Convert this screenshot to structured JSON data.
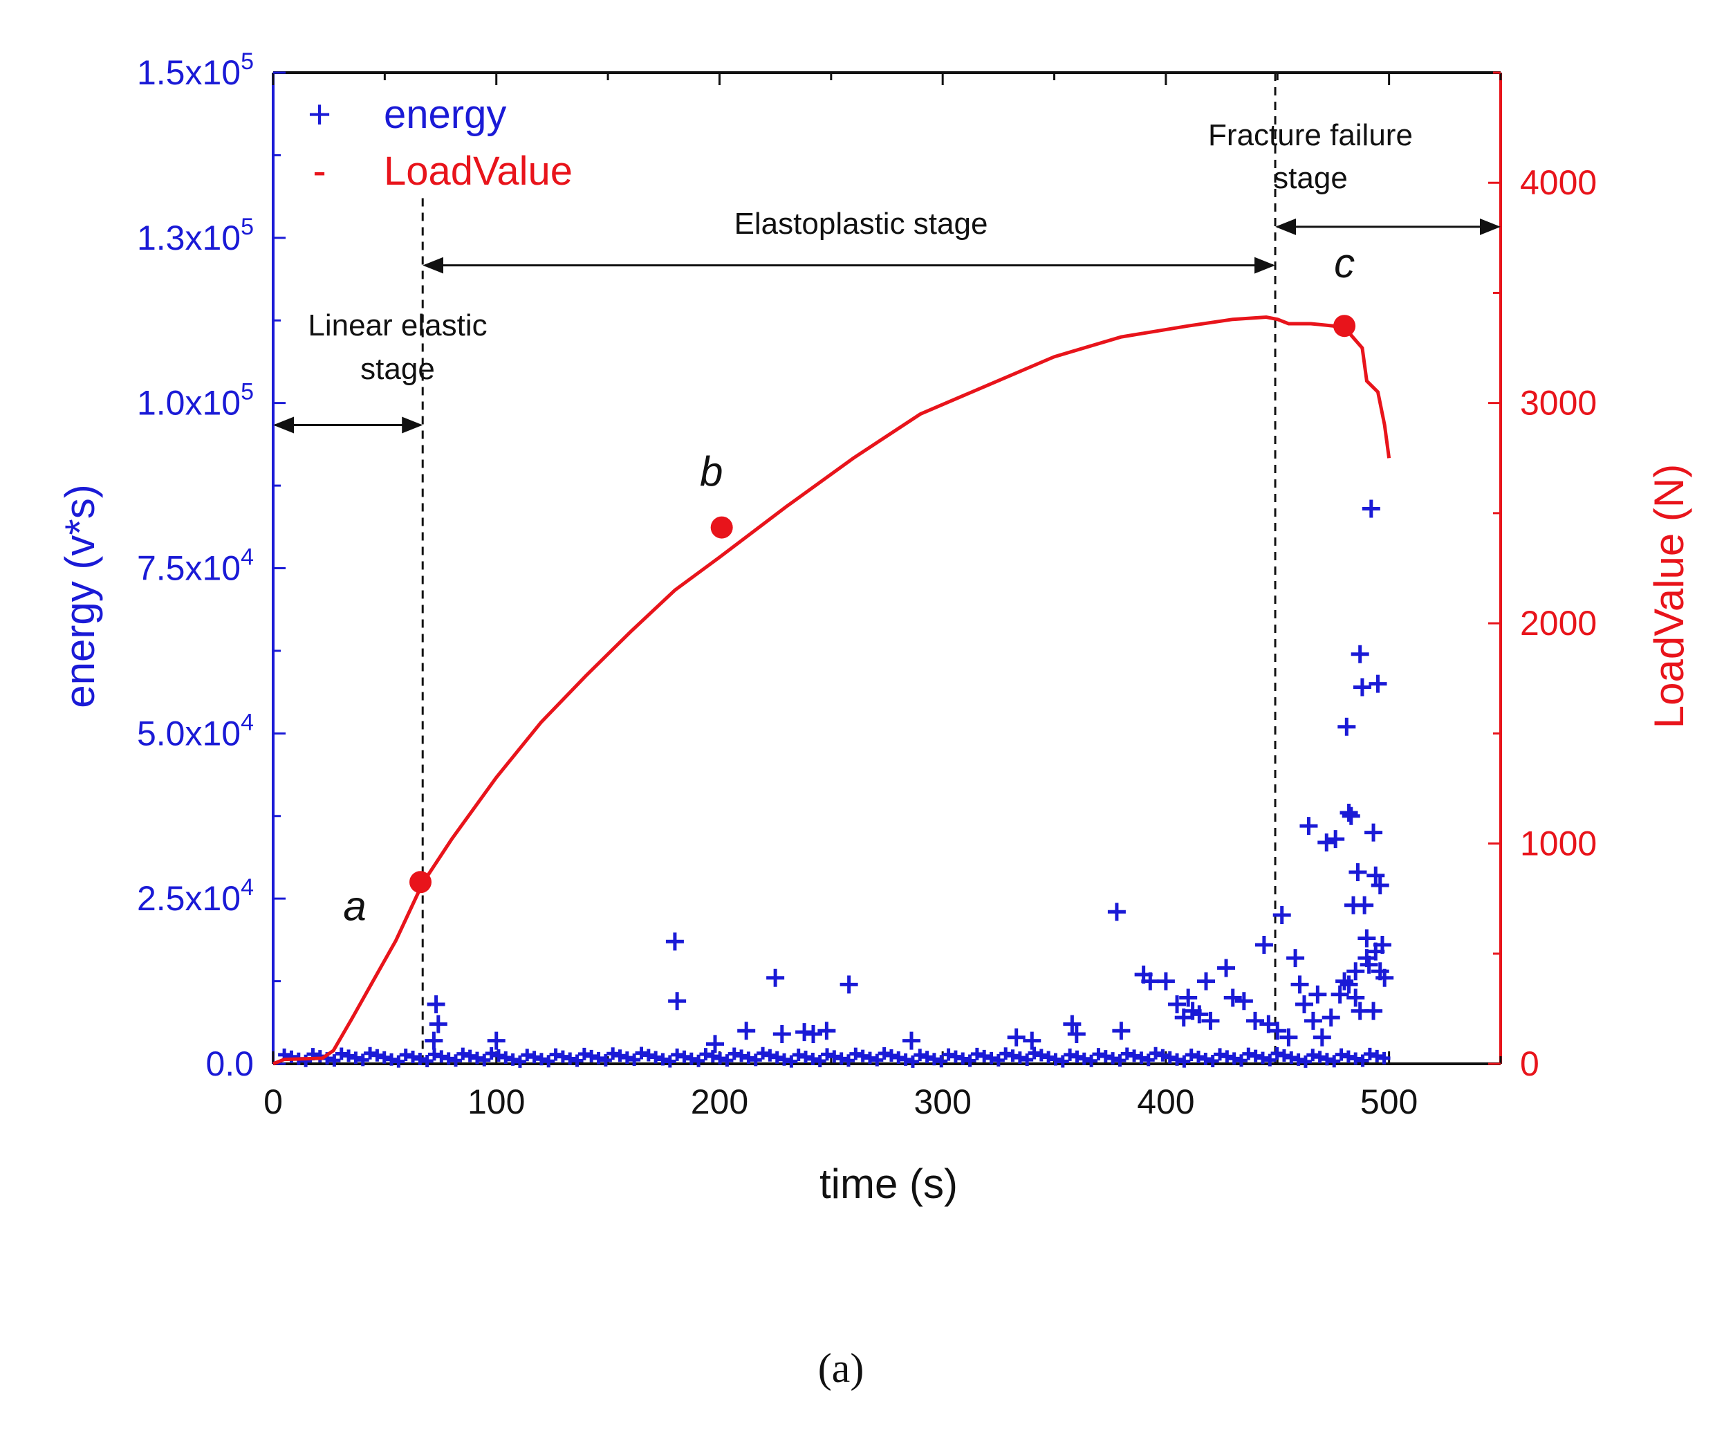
{
  "chart_data": {
    "type": "scatter+line",
    "x_axis": {
      "label": "time (s)",
      "range": [
        0,
        550
      ],
      "ticks": [
        0,
        100,
        200,
        300,
        400,
        500
      ]
    },
    "y_left": {
      "label": "energy (v*s)",
      "range": [
        0,
        150000
      ],
      "ticks": [
        0,
        25000,
        50000,
        75000,
        100000,
        125000,
        150000
      ],
      "tick_labels": [
        {
          "mant": "0.0",
          "exp": ""
        },
        {
          "mant": "2.5x10",
          "exp": "4"
        },
        {
          "mant": "5.0x10",
          "exp": "4"
        },
        {
          "mant": "7.5x10",
          "exp": "4"
        },
        {
          "mant": "1.0x10",
          "exp": "5"
        },
        {
          "mant": "1.3x10",
          "exp": "5"
        },
        {
          "mant": "1.5x10",
          "exp": "5"
        }
      ],
      "color": "#1a1ad6"
    },
    "y_right": {
      "label": "LoadValue (N)",
      "range": [
        0,
        4500
      ],
      "ticks": [
        0,
        1000,
        2000,
        3000,
        4000
      ],
      "tick_labels": [
        "0",
        "1000",
        "2000",
        "3000",
        "4000"
      ],
      "color": "#e8141b"
    },
    "legend": {
      "placement": "top-left",
      "entries": [
        {
          "symbol": "+",
          "name": "energy",
          "color": "#1a1ad6"
        },
        {
          "symbol": "-",
          "name": "LoadValue",
          "color": "#e8141b"
        }
      ]
    },
    "series": [
      {
        "name": "LoadValue",
        "type": "line",
        "axis": "right",
        "color": "#e8141b",
        "points": [
          [
            0,
            0
          ],
          [
            5,
            20
          ],
          [
            22,
            25
          ],
          [
            27,
            60
          ],
          [
            35,
            200
          ],
          [
            45,
            380
          ],
          [
            55,
            560
          ],
          [
            67,
            820
          ],
          [
            80,
            1020
          ],
          [
            100,
            1300
          ],
          [
            120,
            1550
          ],
          [
            140,
            1760
          ],
          [
            160,
            1960
          ],
          [
            180,
            2150
          ],
          [
            200,
            2300
          ],
          [
            230,
            2530
          ],
          [
            260,
            2750
          ],
          [
            290,
            2950
          ],
          [
            320,
            3080
          ],
          [
            350,
            3210
          ],
          [
            380,
            3300
          ],
          [
            410,
            3350
          ],
          [
            430,
            3380
          ],
          [
            445,
            3390
          ],
          [
            450,
            3380
          ],
          [
            455,
            3360
          ],
          [
            465,
            3360
          ],
          [
            475,
            3350
          ],
          [
            482,
            3320
          ],
          [
            488,
            3250
          ],
          [
            490,
            3100
          ],
          [
            495,
            3050
          ],
          [
            498,
            2900
          ],
          [
            500,
            2750
          ]
        ]
      },
      {
        "name": "energy",
        "type": "scatter",
        "axis": "left",
        "color": "#1a1ad6",
        "marker": "+",
        "points": [
          [
            73,
            9000
          ],
          [
            74,
            6000
          ],
          [
            72,
            3500
          ],
          [
            100,
            3500
          ],
          [
            180,
            18500
          ],
          [
            181,
            9500
          ],
          [
            198,
            3000
          ],
          [
            212,
            5000
          ],
          [
            225,
            13000
          ],
          [
            228,
            4500
          ],
          [
            238,
            4800
          ],
          [
            242,
            4500
          ],
          [
            248,
            5000
          ],
          [
            258,
            12000
          ],
          [
            286,
            3500
          ],
          [
            333,
            4000
          ],
          [
            340,
            3500
          ],
          [
            358,
            6000
          ],
          [
            360,
            4500
          ],
          [
            378,
            23000
          ],
          [
            380,
            5000
          ],
          [
            390,
            13500
          ],
          [
            393,
            12500
          ],
          [
            400,
            12500
          ],
          [
            405,
            9000
          ],
          [
            408,
            7000
          ],
          [
            410,
            10000
          ],
          [
            412,
            8000
          ],
          [
            415,
            7500
          ],
          [
            418,
            12500
          ],
          [
            420,
            6500
          ],
          [
            427,
            14500
          ],
          [
            430,
            10000
          ],
          [
            435,
            9500
          ],
          [
            440,
            6500
          ],
          [
            444,
            18000
          ],
          [
            446,
            6000
          ],
          [
            450,
            5000
          ],
          [
            452,
            22500
          ],
          [
            455,
            4000
          ],
          [
            458,
            16000
          ],
          [
            460,
            12000
          ],
          [
            462,
            9000
          ],
          [
            464,
            36000
          ],
          [
            466,
            6500
          ],
          [
            468,
            10500
          ],
          [
            470,
            4000
          ],
          [
            472,
            33500
          ],
          [
            474,
            7000
          ],
          [
            476,
            34000
          ],
          [
            478,
            10500
          ],
          [
            480,
            12500
          ],
          [
            481,
            51000
          ],
          [
            482,
            38000
          ],
          [
            483,
            37500
          ],
          [
            484,
            24000
          ],
          [
            485,
            10000
          ],
          [
            486,
            29000
          ],
          [
            487,
            62000
          ],
          [
            488,
            57000
          ],
          [
            489,
            24000
          ],
          [
            490,
            19000
          ],
          [
            491,
            15000
          ],
          [
            492,
            84000
          ],
          [
            493,
            35000
          ],
          [
            494,
            28500
          ],
          [
            495,
            57500
          ],
          [
            496,
            27000
          ],
          [
            497,
            18000
          ],
          [
            498,
            13000
          ],
          [
            493,
            8000
          ],
          [
            487,
            8000
          ],
          [
            482,
            12000
          ],
          [
            485,
            14000
          ],
          [
            490,
            16000
          ],
          [
            494,
            17000
          ],
          [
            496,
            14000
          ]
        ]
      },
      {
        "name": "key_points",
        "type": "markers",
        "axis": "right",
        "color": "#e8141b",
        "points": [
          {
            "x": 66,
            "y": 825,
            "label": "a"
          },
          {
            "x": 201,
            "y": 2435,
            "label": "b"
          },
          {
            "x": 480,
            "y": 3350,
            "label": "c"
          }
        ]
      }
    ],
    "stage_boundaries": [
      67,
      449
    ],
    "annotations": [
      {
        "text_lines": [
          "Linear elastic",
          "stage"
        ],
        "span": [
          0,
          67
        ]
      },
      {
        "text_lines": [
          "Elastoplastic stage"
        ],
        "span": [
          67,
          449
        ]
      },
      {
        "text_lines": [
          "Fracture failure",
          "stage"
        ],
        "span": [
          449,
          550
        ]
      }
    ],
    "caption": "(a)"
  }
}
